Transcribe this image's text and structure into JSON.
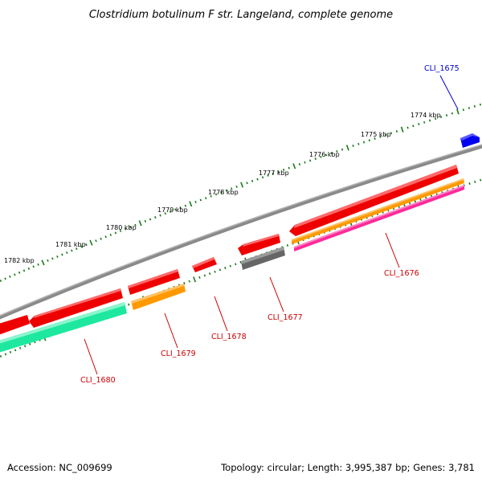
{
  "title": "Clostridium botulinum F str. Langeland, complete genome",
  "footer": {
    "accession": "Accession: NC_009699",
    "summary": "Topology: circular; Length: 3,995,387 bp; Genes: 3,781"
  },
  "ruler": {
    "unit": "kbp",
    "tick_labels": [
      "1774 kbp",
      "1775 kbp",
      "1776 kbp",
      "1777 kbp",
      "1778 kbp",
      "1779 kbp",
      "1780 kbp",
      "1781 kbp",
      "1782 kbp"
    ]
  },
  "colors": {
    "backbone": "#8a8a8a",
    "ruler_ticks": "#1a7a1a",
    "label_red": "#cc0000",
    "label_blue": "#0000cc",
    "cds_red": "#ee0000",
    "orange": "#ff9900",
    "magenta": "#ff2a9a",
    "teal": "#1ee8a0",
    "gray": "#666666",
    "blue": "#0000ee"
  },
  "gene_labels": [
    {
      "text": "CLI_1675",
      "color": "#0000cc"
    },
    {
      "text": "CLI_1676",
      "color": "#cc0000"
    },
    {
      "text": "CLI_1677",
      "color": "#cc0000"
    },
    {
      "text": "CLI_1678",
      "color": "#cc0000"
    },
    {
      "text": "CLI_1679",
      "color": "#cc0000"
    },
    {
      "text": "CLI_1680",
      "color": "#cc0000"
    }
  ]
}
